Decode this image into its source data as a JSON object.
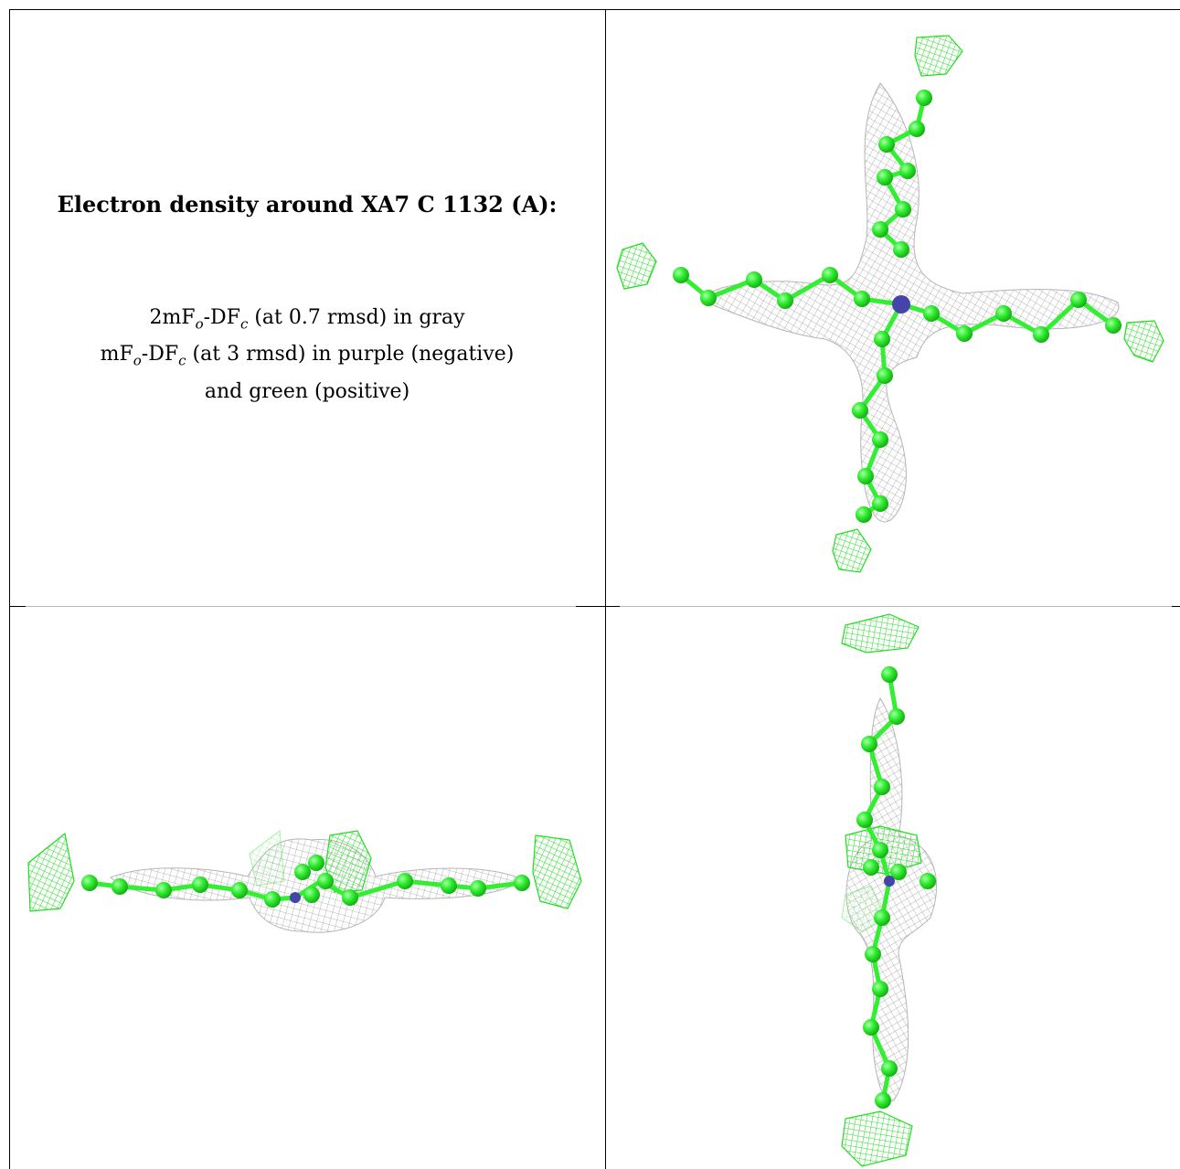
{
  "legend": {
    "title": "Electron density around XA7 C 1132 (A):",
    "map1_prefix": "2mF",
    "map1_mid": "-DF",
    "map1_suffix": " (at 0.7 rmsd) in gray",
    "map2_prefix": "mF",
    "map2_mid": "-DF",
    "map2_suffix": " (at 3 rmsd) in purple (negative)",
    "map2_line2": "and green (positive)",
    "sub_o": "o",
    "sub_c": "c"
  },
  "colors": {
    "atom_carbon": "#33ee33",
    "atom_nitrogen": "#4444aa",
    "mesh_2fofc": "#9a9a9a",
    "mesh_positive": "#22dd22"
  },
  "panels": [
    {
      "name": "top-view",
      "view": "along-axis"
    },
    {
      "name": "side-view-horizontal",
      "view": "edge-on horizontal"
    },
    {
      "name": "side-view-vertical",
      "view": "edge-on vertical"
    }
  ]
}
